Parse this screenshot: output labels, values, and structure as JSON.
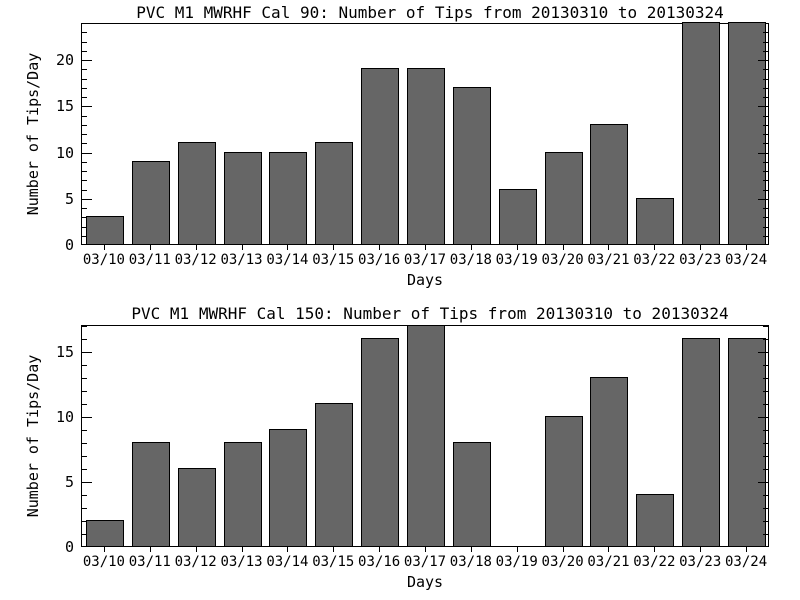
{
  "chart_data": [
    {
      "type": "bar",
      "title": "PVC M1 MWRHF Cal 90: Number of Tips from 20130310 to 20130324",
      "xlabel": "Days",
      "ylabel": "Number of Tips/Day",
      "categories": [
        "03/10",
        "03/11",
        "03/12",
        "03/13",
        "03/14",
        "03/15",
        "03/16",
        "03/17",
        "03/18",
        "03/19",
        "03/20",
        "03/21",
        "03/22",
        "03/23",
        "03/24"
      ],
      "values": [
        3,
        9,
        11,
        10,
        10,
        11,
        19,
        19,
        17,
        6,
        10,
        13,
        5,
        24,
        24
      ],
      "ylim": [
        0,
        24
      ],
      "ytick_major": [
        0,
        5,
        10,
        15,
        20
      ],
      "ytick_minor_step": 1,
      "grid": "off",
      "legend": "none",
      "clipped_bars": [
        "03/23",
        "03/24"
      ]
    },
    {
      "type": "bar",
      "title": "PVC M1 MWRHF Cal 150: Number of Tips from 20130310 to 20130324",
      "xlabel": "Days",
      "ylabel": "Number of Tips/Day",
      "categories": [
        "03/10",
        "03/11",
        "03/12",
        "03/13",
        "03/14",
        "03/15",
        "03/16",
        "03/17",
        "03/18",
        "03/19",
        "03/20",
        "03/21",
        "03/22",
        "03/23",
        "03/24"
      ],
      "values": [
        2,
        8,
        6,
        8,
        9,
        11,
        16,
        17,
        8,
        0,
        10,
        13,
        4,
        16,
        16
      ],
      "ylim": [
        0,
        17.1
      ],
      "ytick_major": [
        0,
        5,
        10,
        15
      ],
      "ytick_minor_step": 1,
      "grid": "off",
      "legend": "none",
      "clipped_bars": [
        "03/17"
      ]
    }
  ],
  "colors": {
    "bar_fill": "#666666",
    "bar_border": "#000000",
    "axis": "#000000",
    "background": "#ffffff",
    "text": "#000000"
  }
}
